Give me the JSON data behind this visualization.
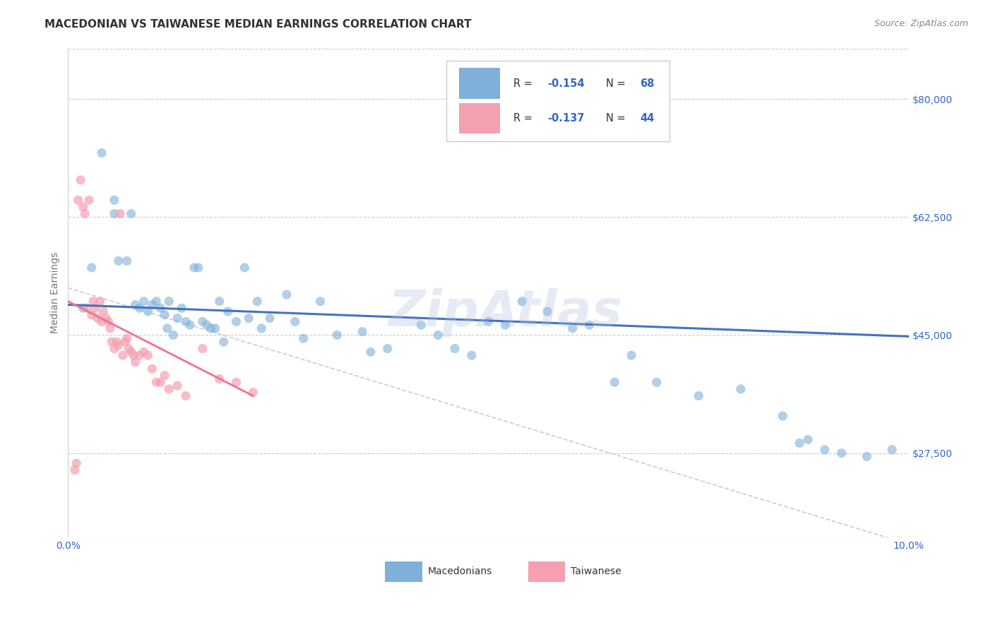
{
  "title": "MACEDONIAN VS TAIWANESE MEDIAN EARNINGS CORRELATION CHART",
  "source": "Source: ZipAtlas.com",
  "ylabel": "Median Earnings",
  "x_min": 0.0,
  "x_max": 0.1,
  "y_min": 15000,
  "y_max": 87500,
  "yticks": [
    27500,
    45000,
    62500,
    80000
  ],
  "ytick_labels": [
    "$27,500",
    "$45,000",
    "$62,500",
    "$80,000"
  ],
  "xticks": [
    0.0,
    0.02,
    0.04,
    0.06,
    0.08,
    0.1
  ],
  "xtick_labels": [
    "0.0%",
    "",
    "",
    "",
    "",
    "10.0%"
  ],
  "watermark": "ZipAtlas",
  "blue_color": "#7EB0D9",
  "pink_color": "#F4A0B0",
  "blue_line_color": "#4472C4",
  "pink_line_color": "#F47090",
  "dashed_line_color": "#CCCCCC",
  "axis_color": "#3366CC",
  "legend_R_color": "#3366CC",
  "macedonians_R": -0.154,
  "macedonians_N": 68,
  "taiwanese_R": -0.137,
  "taiwanese_N": 44,
  "macedonians_scatter_x": [
    0.0018,
    0.0028,
    0.004,
    0.0055,
    0.0055,
    0.006,
    0.007,
    0.0075,
    0.008,
    0.0085,
    0.009,
    0.0095,
    0.01,
    0.0105,
    0.011,
    0.0115,
    0.0118,
    0.012,
    0.0125,
    0.013,
    0.0135,
    0.014,
    0.0145,
    0.015,
    0.0155,
    0.016,
    0.0165,
    0.017,
    0.0175,
    0.018,
    0.0185,
    0.019,
    0.02,
    0.021,
    0.0215,
    0.0225,
    0.023,
    0.024,
    0.026,
    0.027,
    0.028,
    0.03,
    0.032,
    0.035,
    0.036,
    0.038,
    0.042,
    0.044,
    0.046,
    0.048,
    0.05,
    0.052,
    0.054,
    0.057,
    0.06,
    0.062,
    0.065,
    0.067,
    0.07,
    0.075,
    0.08,
    0.085,
    0.087,
    0.088,
    0.09,
    0.092,
    0.095,
    0.098
  ],
  "macedonians_scatter_y": [
    49000,
    55000,
    72000,
    65000,
    63000,
    56000,
    56000,
    63000,
    49500,
    49000,
    50000,
    48500,
    49500,
    50000,
    49000,
    48000,
    46000,
    50000,
    45000,
    47500,
    49000,
    47000,
    46500,
    55000,
    55000,
    47000,
    46500,
    46000,
    46000,
    50000,
    44000,
    48500,
    47000,
    55000,
    47500,
    50000,
    46000,
    47500,
    51000,
    47000,
    44500,
    50000,
    45000,
    45500,
    42500,
    43000,
    46500,
    45000,
    43000,
    42000,
    47000,
    46500,
    50000,
    48500,
    46000,
    46500,
    38000,
    42000,
    38000,
    36000,
    37000,
    33000,
    29000,
    29500,
    28000,
    27500,
    27000,
    28000
  ],
  "taiwanese_scatter_x": [
    0.0008,
    0.001,
    0.0012,
    0.0015,
    0.0018,
    0.002,
    0.0022,
    0.0025,
    0.0028,
    0.003,
    0.0032,
    0.0035,
    0.0038,
    0.004,
    0.0042,
    0.0045,
    0.0048,
    0.005,
    0.0052,
    0.0055,
    0.0058,
    0.006,
    0.0062,
    0.0065,
    0.0068,
    0.007,
    0.0072,
    0.0075,
    0.0078,
    0.008,
    0.0085,
    0.009,
    0.0095,
    0.01,
    0.0105,
    0.011,
    0.0115,
    0.012,
    0.013,
    0.014,
    0.016,
    0.018,
    0.02,
    0.022
  ],
  "taiwanese_scatter_y": [
    25000,
    26000,
    65000,
    68000,
    64000,
    63000,
    49000,
    65000,
    48000,
    50000,
    49000,
    47500,
    50000,
    47000,
    48500,
    47500,
    47000,
    46000,
    44000,
    43000,
    44000,
    43500,
    63000,
    42000,
    44000,
    44500,
    43000,
    42500,
    42000,
    41000,
    42000,
    42500,
    42000,
    40000,
    38000,
    38000,
    39000,
    37000,
    37500,
    36000,
    43000,
    38500,
    38000,
    36500
  ],
  "blue_trend_x": [
    0.0,
    0.1
  ],
  "blue_trend_y": [
    49500,
    44800
  ],
  "pink_trend_x": [
    0.0,
    0.022
  ],
  "pink_trend_y": [
    50000,
    36000
  ],
  "dashed_trend_x": [
    0.0,
    0.1
  ],
  "dashed_trend_y": [
    52000,
    14000
  ],
  "background_color": "#FFFFFF",
  "title_fontsize": 11,
  "source_fontsize": 9,
  "axis_label_fontsize": 10,
  "tick_fontsize": 10,
  "watermark_fontsize": 52,
  "watermark_color": "#AABBDD",
  "watermark_alpha": 0.3,
  "legend_box_color": "#FFFFFF",
  "legend_box_edge": "#CCCCCC"
}
